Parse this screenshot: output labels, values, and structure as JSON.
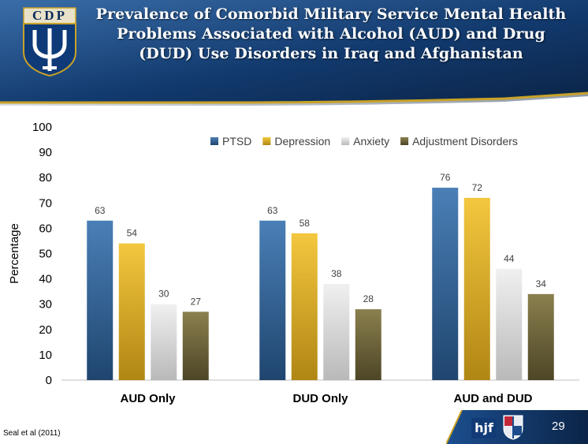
{
  "slide": {
    "title": "Prevalence of Comorbid Military Service Mental Health Problems Associated with Alcohol (AUD) and Drug (DUD) Use Disorders in Iraq and Afghanistan",
    "logo_text": "CDP",
    "hjf_logo_text": "hjf",
    "page_number": "29",
    "citation": "Seal et al (2011)"
  },
  "colors": {
    "header_dark": "#0d2a55",
    "header_light": "#3a6da8",
    "gold": "#c9a227",
    "PTSD": "#2e5f93",
    "Depression": "#e0b12a",
    "Anxiety": "#d4d4d4",
    "Adjustment Disorders": "#6b6238"
  },
  "chart_data": {
    "type": "bar",
    "title": "",
    "xlabel": "",
    "ylabel": "Percentage",
    "ylim": [
      0,
      100
    ],
    "yticks": [
      "0",
      "10",
      "20",
      "30",
      "40",
      "50",
      "60",
      "70",
      "80",
      "90",
      "100"
    ],
    "categories": [
      "AUD Only",
      "DUD Only",
      "AUD and DUD"
    ],
    "series": [
      {
        "name": "PTSD",
        "values": [
          63,
          63,
          76
        ]
      },
      {
        "name": "Depression",
        "values": [
          54,
          58,
          72
        ]
      },
      {
        "name": "Anxiety",
        "values": [
          30,
          38,
          44
        ]
      },
      {
        "name": "Adjustment Disorders",
        "values": [
          27,
          28,
          34
        ]
      }
    ],
    "legend": "top-right",
    "grid": false
  }
}
